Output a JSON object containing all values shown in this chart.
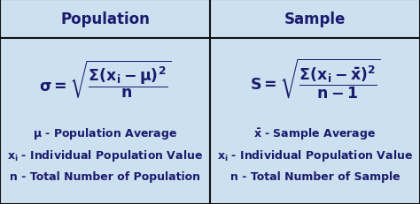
{
  "bg_color": "#cce0f0",
  "border_color": "#111111",
  "text_color": "#1a1a6e",
  "title_left": "Population",
  "title_right": "Sample",
  "title_fontsize": 12,
  "formula_fontsize": 12.5,
  "legend_fontsize": 9.0,
  "fig_width": 4.74,
  "fig_height": 2.32,
  "dpi": 100,
  "header_split": 0.81,
  "mid_split": 0.5
}
